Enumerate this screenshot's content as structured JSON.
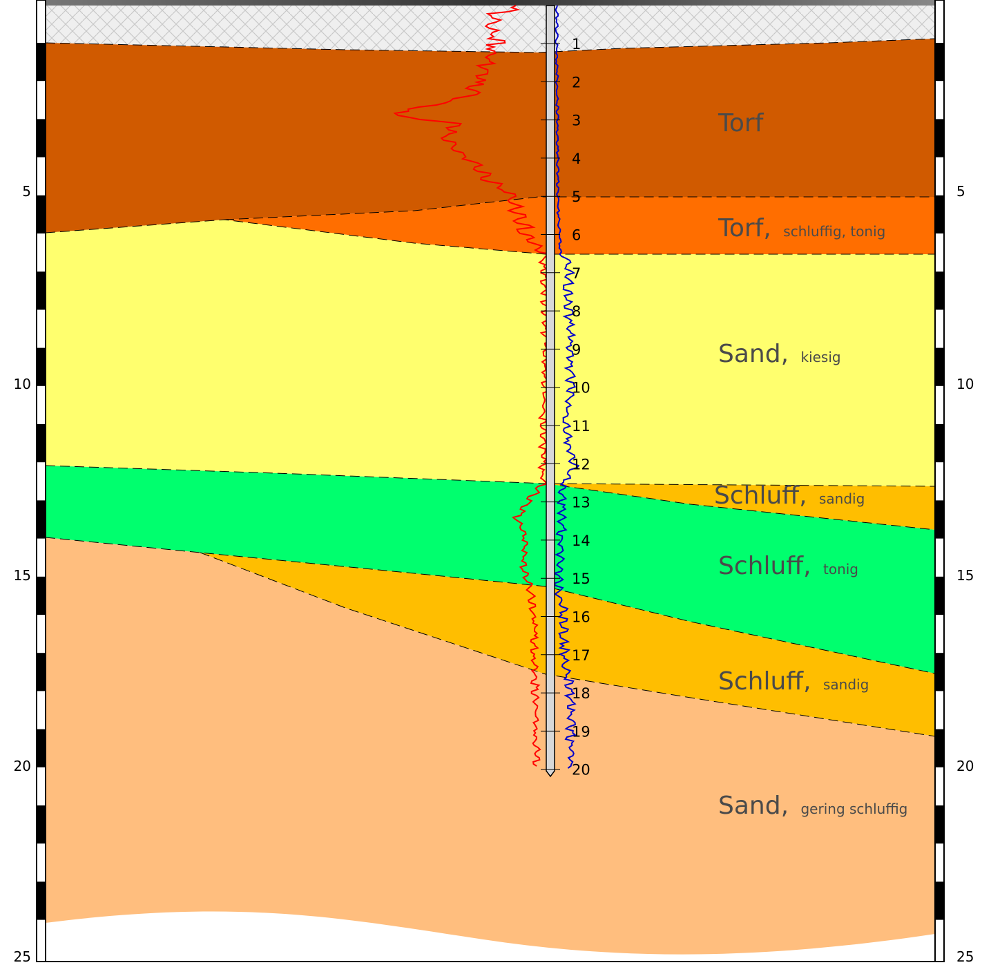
{
  "scale": {
    "left_labels": [
      "5",
      "10",
      "15",
      "20",
      "25"
    ],
    "right_labels": [
      "5",
      "10",
      "15",
      "20",
      "25"
    ]
  },
  "probe": {
    "tick_labels": [
      "1",
      "2",
      "3",
      "4",
      "5",
      "6",
      "7",
      "8",
      "9",
      "10",
      "11",
      "12",
      "13",
      "14",
      "15",
      "16",
      "17",
      "18",
      "19",
      "20"
    ]
  },
  "layers": [
    {
      "id": "torf",
      "name": "Torf",
      "qualifier": "",
      "color": "#d05a00"
    },
    {
      "id": "torf-schluffig",
      "name": "Torf,",
      "qualifier": "schluffig, tonig",
      "color": "#ff6e00"
    },
    {
      "id": "sand-kiesig",
      "name": "Sand,",
      "qualifier": "kiesig",
      "color": "#ffff6e"
    },
    {
      "id": "schluff-sandig-1",
      "name": "Schluff,",
      "qualifier": "sandig",
      "color": "#ffbe00"
    },
    {
      "id": "schluff-tonig",
      "name": "Schluff,",
      "qualifier": "tonig",
      "color": "#00ff6e"
    },
    {
      "id": "schluff-sandig-2",
      "name": "Schluff,",
      "qualifier": "sandig",
      "color": "#ffbe00"
    },
    {
      "id": "sand-gering",
      "name": "Sand,",
      "qualifier": "gering schluffig",
      "color": "#ffbe7e"
    }
  ],
  "colors": {
    "fill_surface": "#e6e6e6",
    "trace_red": "#ff0000",
    "trace_blue": "#0000cc"
  }
}
